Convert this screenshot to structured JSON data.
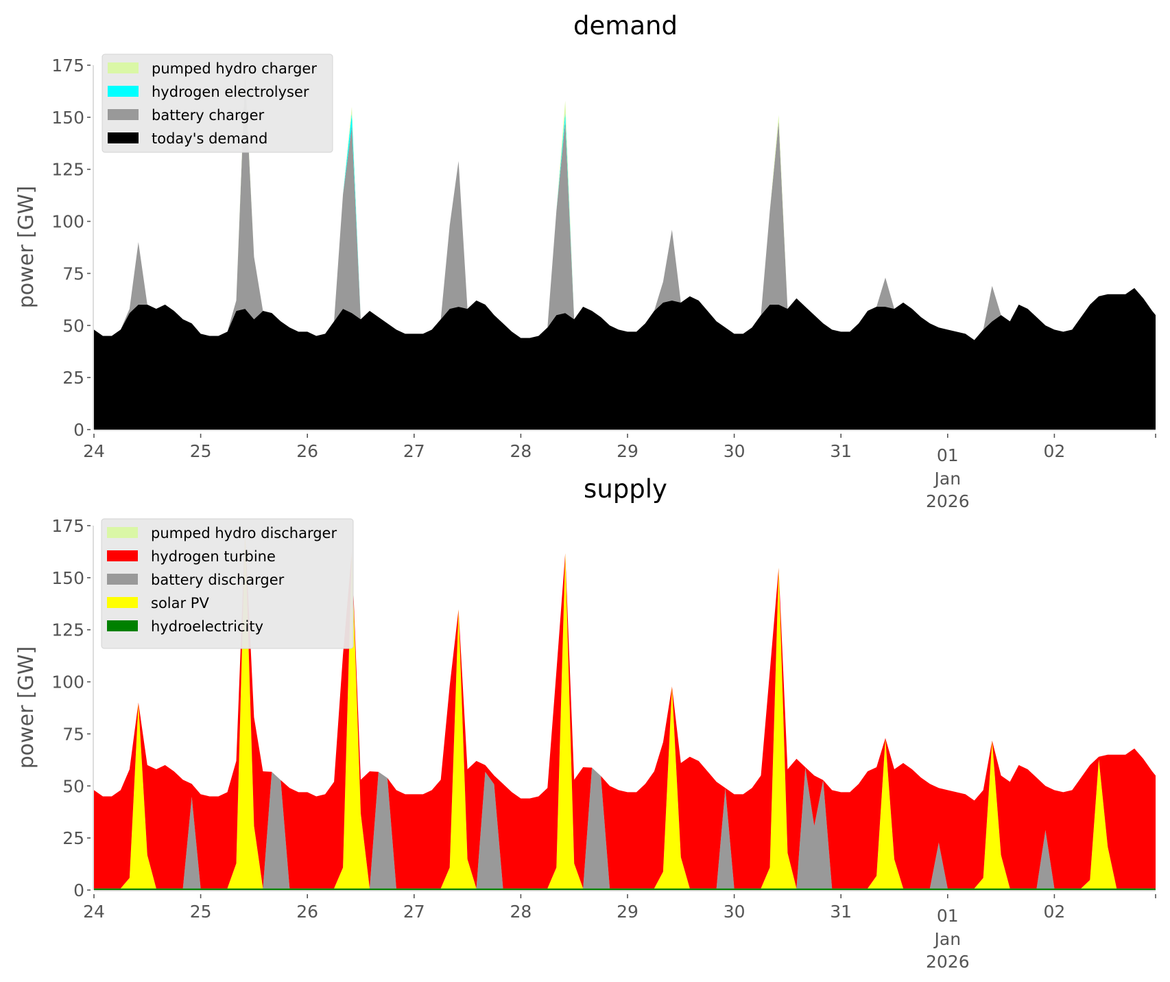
{
  "chart_data": [
    {
      "type": "area",
      "title": "demand",
      "xlabel": "",
      "ylabel": "power [GW]",
      "ylim": [
        0,
        175
      ],
      "yticks": [
        "0",
        "25",
        "50",
        "75",
        "100",
        "125",
        "150",
        "175"
      ],
      "xticks": [
        {
          "label": "24"
        },
        {
          "label": "25"
        },
        {
          "label": "26"
        },
        {
          "label": "27"
        },
        {
          "label": "28"
        },
        {
          "label": "29"
        },
        {
          "label": "30"
        },
        {
          "label": "31"
        },
        {
          "label": "01",
          "sub": [
            "Jan",
            "2026"
          ]
        },
        {
          "label": "02"
        }
      ],
      "x_unit": "hours since 24 Dec 2025 00:00",
      "x_step_hours": 2,
      "grid": false,
      "legend_position": "top-left",
      "legend": [
        {
          "name": "pumped hydro charger",
          "color": "#daf7a6"
        },
        {
          "name": "hydrogen electrolyser",
          "color": "#00ffff"
        },
        {
          "name": "battery charger",
          "color": "#999999"
        },
        {
          "name": "today's demand",
          "color": "#000000"
        }
      ],
      "series": [
        {
          "name": "today's demand",
          "color": "#000000",
          "values": [
            48,
            45,
            45,
            48,
            56,
            60,
            60,
            58,
            60,
            57,
            53,
            51,
            46,
            45,
            45,
            47,
            57,
            58,
            53,
            57,
            56,
            52,
            49,
            47,
            47,
            45,
            46,
            52,
            58,
            56,
            53,
            57,
            54,
            51,
            48,
            46,
            46,
            46,
            48,
            53,
            58,
            59,
            58,
            62,
            60,
            55,
            51,
            47,
            44,
            44,
            45,
            49,
            55,
            56,
            53,
            59,
            57,
            54,
            50,
            48,
            47,
            47,
            51,
            57,
            61,
            62,
            61,
            64,
            62,
            57,
            52,
            49,
            46,
            46,
            49,
            55,
            60,
            60,
            58,
            63,
            59,
            55,
            51,
            48,
            47,
            47,
            51,
            57,
            59,
            59,
            58,
            61,
            58,
            54,
            51,
            49,
            48,
            47,
            46,
            43,
            48,
            52,
            55,
            52,
            60,
            58,
            54,
            50,
            48,
            47,
            48,
            54,
            60,
            64,
            65,
            65,
            65,
            68,
            63,
            57,
            55
          ]
        },
        {
          "name": "battery charger",
          "color": "#999999",
          "values": [
            0,
            0,
            0,
            0,
            2,
            30,
            0,
            0,
            0,
            0,
            0,
            0,
            0,
            0,
            0,
            0,
            5,
            112,
            30,
            0,
            0,
            0,
            0,
            0,
            0,
            0,
            0,
            0,
            55,
            90,
            0,
            0,
            0,
            0,
            0,
            0,
            0,
            0,
            0,
            0,
            40,
            70,
            0,
            0,
            0,
            0,
            0,
            0,
            0,
            0,
            0,
            0,
            50,
            92,
            0,
            0,
            0,
            0,
            0,
            0,
            0,
            0,
            0,
            0,
            10,
            34,
            0,
            0,
            0,
            0,
            0,
            0,
            0,
            0,
            0,
            0,
            45,
            88,
            0,
            0,
            0,
            0,
            0,
            0,
            0,
            0,
            0,
            0,
            0,
            14,
            0,
            0,
            0,
            0,
            0,
            0,
            0,
            0,
            0,
            0,
            0,
            17,
            0,
            0,
            0,
            0,
            0,
            0,
            0,
            0,
            0,
            0,
            0,
            0,
            0,
            0,
            0,
            0,
            0,
            0,
            0
          ]
        },
        {
          "name": "hydrogen electrolyser",
          "color": "#00ffff",
          "values": [
            0,
            0,
            0,
            0,
            0,
            0,
            0,
            0,
            0,
            0,
            0,
            0,
            0,
            0,
            0,
            0,
            0,
            0,
            0,
            0,
            0,
            0,
            0,
            0,
            0,
            0,
            0,
            0,
            0,
            6,
            0,
            0,
            0,
            0,
            0,
            0,
            0,
            0,
            0,
            0,
            0,
            0,
            0,
            0,
            0,
            0,
            0,
            0,
            0,
            0,
            0,
            0,
            0,
            4,
            0,
            0,
            0,
            0,
            0,
            0,
            0,
            0,
            0,
            0,
            0,
            0,
            0,
            0,
            0,
            0,
            0,
            0,
            0,
            0,
            0,
            0,
            0,
            0,
            0,
            0,
            0,
            0,
            0,
            0,
            0,
            0,
            0,
            0,
            0,
            0,
            0,
            0,
            0,
            0,
            0,
            0,
            0,
            0,
            0,
            0,
            0,
            0,
            0,
            0,
            0,
            0,
            0,
            0,
            0,
            0,
            0,
            0,
            0,
            0,
            0,
            0,
            0,
            0,
            0,
            0,
            0
          ]
        },
        {
          "name": "pumped hydro charger",
          "color": "#daf7a6",
          "values": [
            0,
            0,
            0,
            0,
            0,
            0,
            0,
            0,
            0,
            0,
            0,
            0,
            0,
            0,
            0,
            0,
            0,
            2,
            0,
            0,
            0,
            0,
            0,
            0,
            0,
            0,
            0,
            0,
            0,
            3,
            0,
            0,
            0,
            0,
            0,
            0,
            0,
            0,
            0,
            0,
            0,
            0,
            0,
            0,
            0,
            0,
            0,
            0,
            0,
            0,
            0,
            0,
            0,
            6,
            0,
            0,
            0,
            0,
            0,
            0,
            0,
            0,
            0,
            0,
            0,
            0,
            0,
            0,
            0,
            0,
            0,
            0,
            0,
            0,
            0,
            0,
            0,
            3,
            0,
            0,
            0,
            0,
            0,
            0,
            0,
            0,
            0,
            0,
            0,
            0,
            0,
            0,
            0,
            0,
            0,
            0,
            0,
            0,
            0,
            0,
            0,
            0,
            0,
            0,
            0,
            0,
            0,
            0,
            0,
            0,
            0,
            0,
            0,
            0,
            0,
            0,
            0,
            0,
            0,
            0,
            0
          ]
        }
      ]
    },
    {
      "type": "area",
      "title": "supply",
      "xlabel": "",
      "ylabel": "power [GW]",
      "ylim": [
        0,
        175
      ],
      "yticks": [
        "0",
        "25",
        "50",
        "75",
        "100",
        "125",
        "150",
        "175"
      ],
      "xticks": [
        {
          "label": "24"
        },
        {
          "label": "25"
        },
        {
          "label": "26"
        },
        {
          "label": "27"
        },
        {
          "label": "28"
        },
        {
          "label": "29"
        },
        {
          "label": "30"
        },
        {
          "label": "31"
        },
        {
          "label": "01",
          "sub": [
            "Jan",
            "2026"
          ]
        },
        {
          "label": "02"
        }
      ],
      "x_unit": "hours since 24 Dec 2025 00:00",
      "x_step_hours": 2,
      "grid": false,
      "legend_position": "top-left",
      "legend": [
        {
          "name": "pumped hydro discharger",
          "color": "#daf7a6"
        },
        {
          "name": "hydrogen turbine",
          "color": "#ff0000"
        },
        {
          "name": "battery discharger",
          "color": "#999999"
        },
        {
          "name": "solar PV",
          "color": "#ffff00"
        },
        {
          "name": "hydroelectricity",
          "color": "#008000"
        }
      ],
      "series": [
        {
          "name": "hydroelectricity",
          "color": "#008000",
          "values": [
            0.8,
            0.8,
            0.8,
            0.8,
            0.8,
            0.8,
            0.8,
            0.8,
            0.8,
            0.8,
            0.8,
            0.8,
            0.8,
            0.8,
            0.8,
            0.8,
            0.8,
            0.8,
            0.8,
            0.8,
            0.8,
            0.8,
            0.8,
            0.8,
            0.8,
            0.8,
            0.8,
            0.8,
            0.8,
            0.8,
            0.8,
            0.8,
            0.8,
            0.8,
            0.8,
            0.8,
            0.8,
            0.8,
            0.8,
            0.8,
            0.8,
            0.8,
            0.8,
            0.8,
            0.8,
            0.8,
            0.8,
            0.8,
            0.8,
            0.8,
            0.8,
            0.8,
            0.8,
            0.8,
            0.8,
            0.8,
            0.8,
            0.8,
            0.8,
            0.8,
            0.8,
            0.8,
            0.8,
            0.8,
            0.8,
            0.8,
            0.8,
            0.8,
            0.8,
            0.8,
            0.8,
            0.8,
            0.8,
            0.8,
            0.8,
            0.8,
            0.8,
            0.8,
            0.8,
            0.8,
            0.8,
            0.8,
            0.8,
            0.8,
            0.8,
            0.8,
            0.8,
            0.8,
            0.8,
            0.8,
            0.8,
            0.8,
            0.8,
            0.8,
            0.8,
            0.8,
            0.8,
            0.8,
            0.8,
            0.8,
            0.8,
            0.8,
            0.8,
            0.8,
            0.8,
            0.8,
            0.8,
            0.8,
            0.8,
            0.8,
            0.8,
            0.8,
            0.8,
            0.8,
            0.8,
            0.8,
            0.8,
            0.8,
            0.8,
            0.8,
            0.8
          ]
        },
        {
          "name": "solar PV",
          "color": "#ffff00",
          "values": [
            0,
            0,
            0,
            0,
            5,
            89,
            16,
            0,
            0,
            0,
            0,
            0,
            0,
            0,
            0,
            0,
            12,
            171,
            30,
            0,
            0,
            0,
            0,
            0,
            0,
            0,
            0,
            0,
            10,
            162,
            36,
            0,
            0,
            0,
            0,
            0,
            0,
            0,
            0,
            0,
            10,
            134,
            14,
            0,
            0,
            0,
            0,
            0,
            0,
            0,
            0,
            0,
            10,
            161,
            12,
            0,
            0,
            0,
            0,
            0,
            0,
            0,
            0,
            0,
            8,
            97,
            15,
            0,
            0,
            0,
            0,
            0,
            0,
            0,
            0,
            0,
            10,
            154,
            17,
            0,
            0,
            0,
            0,
            0,
            0,
            0,
            0,
            0,
            6,
            72,
            14,
            0,
            0,
            0,
            0,
            0,
            0,
            0,
            0,
            0,
            5,
            71,
            16,
            0,
            0,
            0,
            0,
            0,
            0,
            0,
            0,
            0,
            4,
            62,
            20,
            0,
            0,
            0,
            0,
            0,
            0
          ]
        },
        {
          "name": "battery discharger",
          "color": "#999999",
          "values": [
            0,
            0,
            0,
            0,
            0,
            0,
            0,
            0,
            0,
            0,
            0,
            44,
            0,
            0,
            0,
            0,
            0,
            0,
            0,
            0,
            56,
            52,
            0,
            0,
            0,
            0,
            0,
            0,
            0,
            0,
            0,
            0,
            56,
            53,
            0,
            0,
            0,
            0,
            0,
            0,
            0,
            0,
            0,
            0,
            56,
            50,
            0,
            0,
            0,
            0,
            0,
            0,
            0,
            0,
            0,
            0,
            58,
            54,
            0,
            0,
            0,
            0,
            0,
            0,
            0,
            0,
            0,
            0,
            0,
            0,
            0,
            48,
            0,
            0,
            0,
            0,
            0,
            0,
            0,
            0,
            58,
            30,
            52,
            0,
            0,
            0,
            0,
            0,
            0,
            0,
            0,
            0,
            0,
            0,
            0,
            22,
            0,
            0,
            0,
            0,
            0,
            0,
            0,
            0,
            0,
            0,
            0,
            28,
            0,
            0,
            0,
            0,
            0,
            0,
            0,
            0,
            0,
            0,
            0,
            0,
            0
          ]
        },
        {
          "name": "hydrogen turbine",
          "color": "#ff0000",
          "derived": "total minus other sources"
        },
        {
          "name": "pumped hydro discharger",
          "color": "#daf7a6",
          "values": []
        }
      ]
    }
  ]
}
